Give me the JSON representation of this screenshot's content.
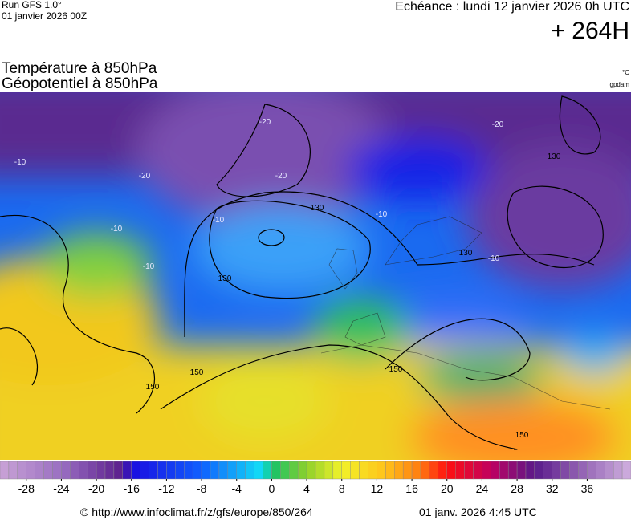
{
  "header": {
    "run": "Run GFS 1.0°",
    "run_date": "01 janvier 2026 00Z",
    "valid": "Echéance : lundi 12 janvier 2026 0h UTC",
    "lead": "+ 264H"
  },
  "titles": [
    "Température à 850hPa",
    "Géopotentiel à 850hPa"
  ],
  "units": [
    "°C",
    "gpdam"
  ],
  "map": {
    "labels": [
      "-20",
      "-20",
      "-20",
      "-20",
      "-10",
      "-10",
      "-10",
      "-10",
      "-10",
      "-10",
      "130",
      "130",
      "130",
      "130",
      "150",
      "150",
      "150",
      "150"
    ]
  },
  "colorbar": {
    "range": [
      -31,
      41
    ],
    "color_stops": [
      {
        "value": -31,
        "color": "#c9a3d6"
      },
      {
        "value": -24,
        "color": "#9a6fc2"
      },
      {
        "value": -17,
        "color": "#5a1d8c"
      },
      {
        "value": -16,
        "color": "#1a0ce0"
      },
      {
        "value": -8,
        "color": "#1060ff"
      },
      {
        "value": -1,
        "color": "#12e0f5"
      },
      {
        "value": 0,
        "color": "#12c26a"
      },
      {
        "value": 4,
        "color": "#8ed12a"
      },
      {
        "value": 8,
        "color": "#f2f22a"
      },
      {
        "value": 13,
        "color": "#ffc21a"
      },
      {
        "value": 17,
        "color": "#ff7a10"
      },
      {
        "value": 20,
        "color": "#ff1010"
      },
      {
        "value": 25,
        "color": "#c00060"
      },
      {
        "value": 30,
        "color": "#5a1a8a"
      },
      {
        "value": 41,
        "color": "#d0b0e0"
      }
    ],
    "ticks": [
      -28,
      -24,
      -20,
      -16,
      -12,
      -8,
      -4,
      0,
      4,
      8,
      12,
      16,
      20,
      24,
      28,
      32,
      36
    ]
  },
  "footer": {
    "source": "© http://www.infoclimat.fr/z/gfs/europe/850/264",
    "stamp": "01 janv. 2026  4:45 UTC"
  }
}
